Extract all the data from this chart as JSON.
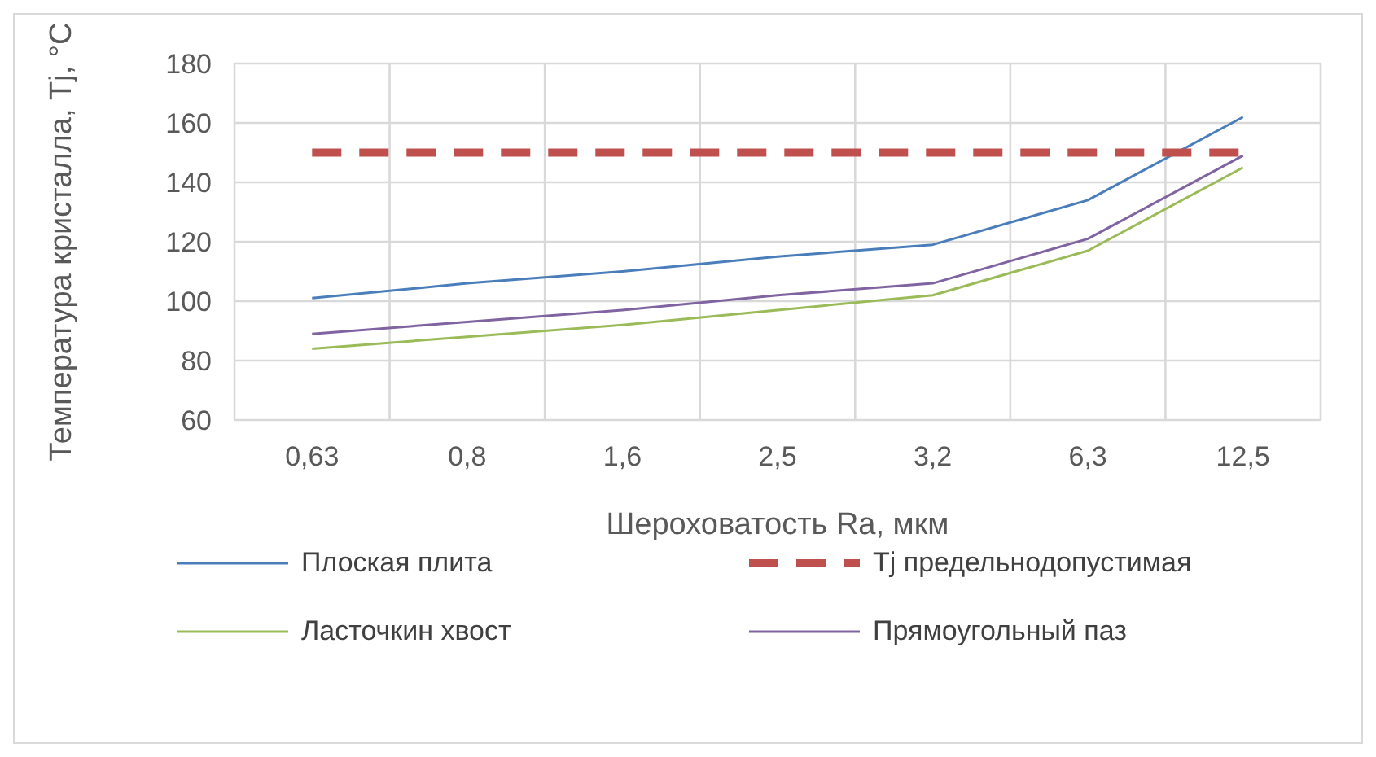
{
  "chart_data": {
    "type": "line",
    "xlabel": "Шероховатость Ra, мкм",
    "ylabel": "Температура кристалла, Tj, °C",
    "categories": [
      "0,63",
      "0,8",
      "1,6",
      "2,5",
      "3,2",
      "6,3",
      "12,5"
    ],
    "series": [
      {
        "name": "Плоская плита",
        "color": "#4a7ebb",
        "values": [
          101,
          106,
          110,
          115,
          119,
          134,
          162
        ]
      },
      {
        "name": "Tj предельнодопустимая",
        "color": "#c0504d",
        "line_style": "dashed",
        "values": [
          150,
          150,
          150,
          150,
          150,
          150,
          150
        ]
      },
      {
        "name": "Ласточкин хвост",
        "color": "#9bbb59",
        "values": [
          84,
          88,
          92,
          97,
          102,
          117,
          145
        ]
      },
      {
        "name": "Прямоугольный паз",
        "color": "#8064a2",
        "values": [
          89,
          93,
          97,
          102,
          106,
          121,
          149
        ]
      }
    ],
    "ylim": [
      60,
      180
    ],
    "yticks": [
      60,
      80,
      100,
      120,
      140,
      160,
      180
    ],
    "grid": true,
    "legend": "bottom",
    "marker": "none",
    "line_style": "solid"
  }
}
